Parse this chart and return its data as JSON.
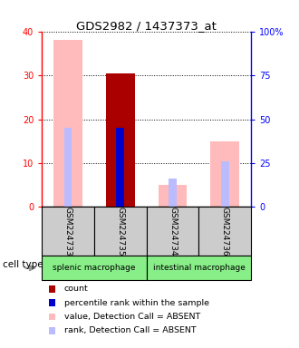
{
  "title": "GDS2982 / 1437373_at",
  "samples": [
    "GSM224733",
    "GSM224735",
    "GSM224734",
    "GSM224736"
  ],
  "value_absent": [
    38.0,
    null,
    5.0,
    15.0
  ],
  "rank_absent_pct": [
    45.0,
    null,
    16.0,
    26.0
  ],
  "count": [
    null,
    30.5,
    null,
    null
  ],
  "percentile_rank_pct": [
    null,
    45.0,
    null,
    null
  ],
  "value_absent_color": "#ffbbbb",
  "rank_absent_color": "#bbbbff",
  "count_color": "#aa0000",
  "percentile_rank_color": "#0000cc",
  "ylim_left": [
    0,
    40
  ],
  "ylim_right": [
    0,
    100
  ],
  "yticks_left": [
    0,
    10,
    20,
    30,
    40
  ],
  "ytick_labels_left": [
    "0",
    "10",
    "20",
    "30",
    "40"
  ],
  "yticks_right": [
    0,
    25,
    50,
    75,
    100
  ],
  "ytick_labels_right": [
    "0",
    "25",
    "50",
    "75",
    "100%"
  ],
  "group1_label": "splenic macrophage",
  "group2_label": "intestinal macrophage",
  "group_color": "#88ee88",
  "sample_box_color": "#cccccc",
  "cell_type_label": "cell type",
  "legend_items": [
    {
      "label": "count",
      "color": "#aa0000"
    },
    {
      "label": "percentile rank within the sample",
      "color": "#0000cc"
    },
    {
      "label": "value, Detection Call = ABSENT",
      "color": "#ffbbbb"
    },
    {
      "label": "rank, Detection Call = ABSENT",
      "color": "#bbbbff"
    }
  ],
  "narrow_bar_width": 0.15,
  "wide_bar_width": 0.55
}
